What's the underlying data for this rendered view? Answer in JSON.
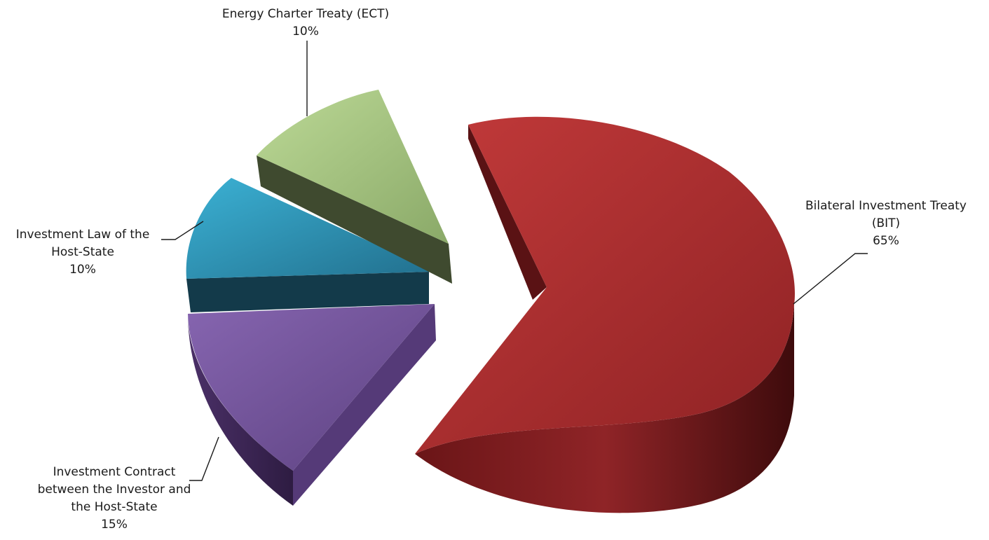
{
  "chart_data": {
    "type": "pie",
    "three_d": true,
    "exploded": true,
    "legend": "none",
    "slices": [
      {
        "label_lines": [
          "Bilateral Investment Treaty",
          "(BIT)"
        ],
        "pct_label": "65%",
        "value": 65,
        "color": "#b03233"
      },
      {
        "label_lines": [
          "Investment Contract",
          "between the Investor and",
          "the Host-State"
        ],
        "pct_label": "15%",
        "value": 15,
        "color": "#7b5aa3"
      },
      {
        "label_lines": [
          "Investment Law of the",
          "Host-State"
        ],
        "pct_label": "10%",
        "value": 10,
        "color": "#2f9bc0"
      },
      {
        "label_lines": [
          "Energy Charter Treaty (ECT)"
        ],
        "pct_label": "10%",
        "value": 10,
        "color": "#a8c77f"
      }
    ]
  }
}
